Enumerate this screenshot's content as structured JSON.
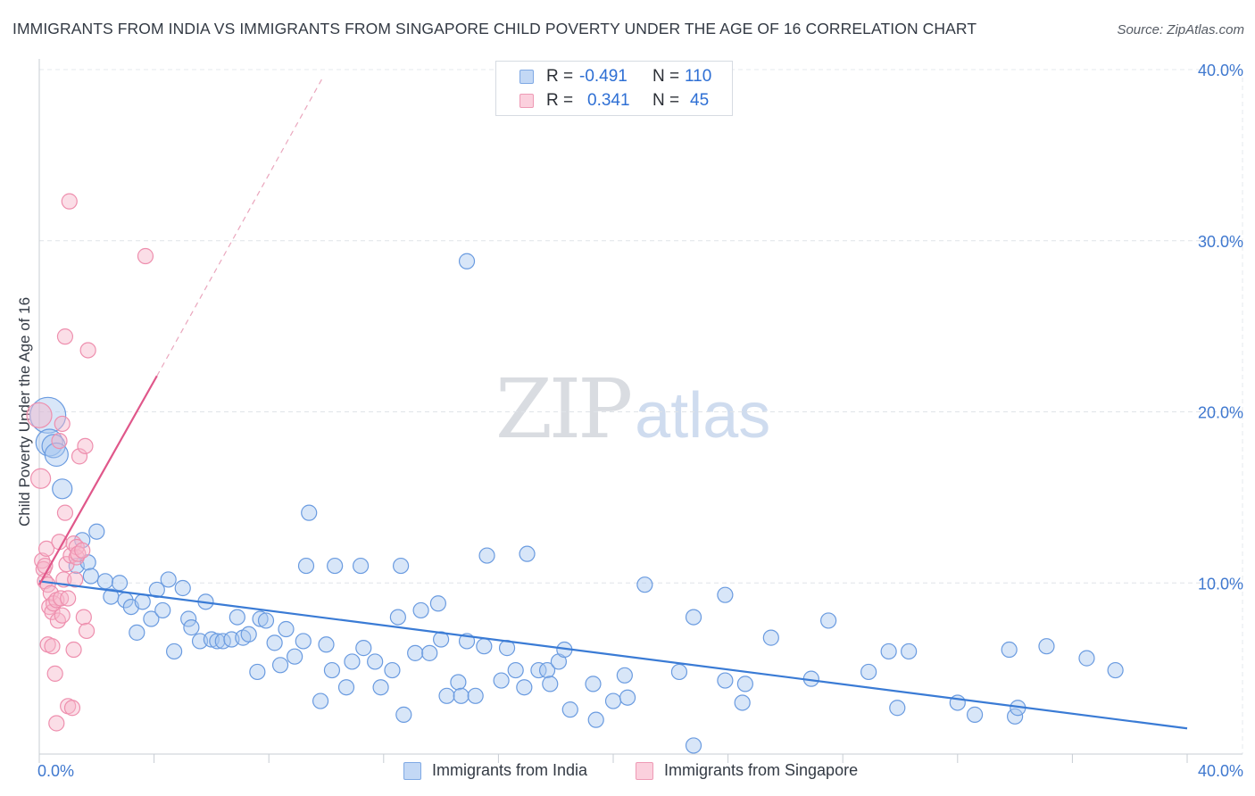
{
  "title": "IMMIGRANTS FROM INDIA VS IMMIGRANTS FROM SINGAPORE CHILD POVERTY UNDER THE AGE OF 16 CORRELATION CHART",
  "source": "Source: ZipAtlas.com",
  "watermark": {
    "zip": "ZIP",
    "atlas": "atlas"
  },
  "legend": {
    "rows": [
      {
        "r_label": "R =",
        "r_value": "-0.491",
        "n_label": "N =",
        "n_value": "110",
        "color": "#9fc2ef"
      },
      {
        "r_label": "R =",
        "r_value": "0.341",
        "n_label": "N =",
        "n_value": "45",
        "color": "#f5b0c5"
      }
    ]
  },
  "chart_data": {
    "type": "scatter",
    "title": "IMMIGRANTS FROM INDIA VS IMMIGRANTS FROM SINGAPORE CHILD POVERTY UNDER THE AGE OF 16 CORRELATION CHART",
    "xlabel": "",
    "ylabel": "Child Poverty Under the Age of 16",
    "xlim": [
      0,
      40
    ],
    "ylim": [
      0,
      40
    ],
    "x_tick_labels": [
      "0.0%",
      "40.0%"
    ],
    "y_tick_labels": [
      "10.0%",
      "20.0%",
      "30.0%",
      "40.0%"
    ],
    "y_ticks": [
      10,
      20,
      30,
      40
    ],
    "grid": true,
    "legend_position": "bottom-center",
    "series": [
      {
        "name": "Immigrants from India",
        "color": "#3a7bd5",
        "fill": "#a9c8f0",
        "trend": {
          "x": [
            0,
            40
          ],
          "y": [
            10.1,
            1.5
          ]
        },
        "points": [
          [
            0.3,
            19.8
          ],
          [
            0.35,
            18.2
          ],
          [
            0.5,
            18.0
          ],
          [
            0.6,
            17.5
          ],
          [
            0.8,
            15.5
          ],
          [
            1.5,
            12.5
          ],
          [
            1.3,
            11.0
          ],
          [
            1.7,
            11.2
          ],
          [
            1.8,
            10.4
          ],
          [
            2.0,
            13.0
          ],
          [
            2.3,
            10.1
          ],
          [
            2.5,
            9.2
          ],
          [
            2.8,
            10.0
          ],
          [
            3.0,
            9.0
          ],
          [
            3.2,
            8.6
          ],
          [
            3.4,
            7.1
          ],
          [
            3.6,
            8.9
          ],
          [
            3.9,
            7.9
          ],
          [
            4.1,
            9.6
          ],
          [
            4.3,
            8.4
          ],
          [
            4.5,
            10.2
          ],
          [
            4.7,
            6.0
          ],
          [
            5.0,
            9.7
          ],
          [
            5.2,
            7.9
          ],
          [
            5.3,
            7.4
          ],
          [
            5.6,
            6.6
          ],
          [
            5.8,
            8.9
          ],
          [
            6.0,
            6.7
          ],
          [
            6.2,
            6.6
          ],
          [
            6.4,
            6.6
          ],
          [
            6.7,
            6.7
          ],
          [
            6.9,
            8.0
          ],
          [
            7.1,
            6.8
          ],
          [
            7.3,
            7.0
          ],
          [
            7.6,
            4.8
          ],
          [
            7.7,
            7.9
          ],
          [
            7.9,
            7.8
          ],
          [
            8.2,
            6.5
          ],
          [
            8.4,
            5.2
          ],
          [
            8.6,
            7.3
          ],
          [
            8.9,
            5.7
          ],
          [
            9.2,
            6.6
          ],
          [
            9.4,
            14.1
          ],
          [
            9.3,
            11.0
          ],
          [
            9.8,
            3.1
          ],
          [
            10.0,
            6.4
          ],
          [
            10.3,
            11.0
          ],
          [
            10.2,
            4.9
          ],
          [
            10.7,
            3.9
          ],
          [
            10.9,
            5.4
          ],
          [
            11.2,
            11.0
          ],
          [
            11.3,
            6.2
          ],
          [
            11.7,
            5.4
          ],
          [
            11.9,
            3.9
          ],
          [
            12.3,
            4.9
          ],
          [
            12.6,
            11.0
          ],
          [
            12.5,
            8.0
          ],
          [
            12.7,
            2.3
          ],
          [
            13.1,
            5.9
          ],
          [
            13.6,
            5.9
          ],
          [
            13.3,
            8.4
          ],
          [
            13.9,
            8.8
          ],
          [
            14.0,
            6.7
          ],
          [
            14.2,
            3.4
          ],
          [
            14.6,
            4.2
          ],
          [
            14.7,
            3.4
          ],
          [
            14.9,
            6.6
          ],
          [
            15.2,
            3.4
          ],
          [
            14.9,
            28.8
          ],
          [
            15.5,
            6.3
          ],
          [
            15.6,
            11.6
          ],
          [
            16.1,
            4.3
          ],
          [
            16.3,
            6.2
          ],
          [
            16.6,
            4.9
          ],
          [
            16.9,
            3.9
          ],
          [
            17.0,
            11.7
          ],
          [
            17.4,
            4.9
          ],
          [
            17.7,
            4.9
          ],
          [
            17.8,
            4.1
          ],
          [
            18.1,
            5.4
          ],
          [
            18.3,
            6.1
          ],
          [
            18.5,
            2.6
          ],
          [
            19.3,
            4.1
          ],
          [
            19.4,
            2.0
          ],
          [
            20.0,
            3.1
          ],
          [
            20.4,
            4.6
          ],
          [
            20.5,
            3.3
          ],
          [
            21.1,
            9.9
          ],
          [
            22.3,
            4.8
          ],
          [
            22.8,
            0.5
          ],
          [
            22.8,
            8.0
          ],
          [
            23.9,
            9.3
          ],
          [
            23.9,
            4.3
          ],
          [
            24.5,
            3.0
          ],
          [
            24.6,
            4.1
          ],
          [
            25.5,
            6.8
          ],
          [
            26.9,
            4.4
          ],
          [
            27.5,
            7.8
          ],
          [
            28.9,
            4.8
          ],
          [
            29.6,
            6.0
          ],
          [
            29.9,
            2.7
          ],
          [
            30.3,
            6.0
          ],
          [
            32.6,
            2.3
          ],
          [
            33.8,
            6.1
          ],
          [
            34.0,
            2.2
          ],
          [
            34.1,
            2.7
          ],
          [
            35.1,
            6.3
          ],
          [
            36.5,
            5.6
          ],
          [
            37.5,
            4.9
          ],
          [
            32.0,
            3.0
          ]
        ]
      },
      {
        "name": "Immigrants from Singapore",
        "color": "#e0578a",
        "fill": "#f7b6ca",
        "trend": {
          "x": [
            0,
            4.1
          ],
          "y": [
            9.9,
            22.1
          ],
          "dashed_extension": {
            "x": [
              4.1,
              9.9
            ],
            "y": [
              22.1,
              39.6
            ]
          }
        },
        "points": [
          [
            0.0,
            19.8
          ],
          [
            0.05,
            16.1
          ],
          [
            0.1,
            11.3
          ],
          [
            0.15,
            10.8
          ],
          [
            0.2,
            11.0
          ],
          [
            0.2,
            10.1
          ],
          [
            0.25,
            12.0
          ],
          [
            0.3,
            9.9
          ],
          [
            0.3,
            6.4
          ],
          [
            0.35,
            8.6
          ],
          [
            0.4,
            9.4
          ],
          [
            0.45,
            6.3
          ],
          [
            0.45,
            8.3
          ],
          [
            0.5,
            8.8
          ],
          [
            0.55,
            4.7
          ],
          [
            0.6,
            1.8
          ],
          [
            0.6,
            9.0
          ],
          [
            0.65,
            7.8
          ],
          [
            0.7,
            12.4
          ],
          [
            0.7,
            18.3
          ],
          [
            0.75,
            9.1
          ],
          [
            0.8,
            8.1
          ],
          [
            0.8,
            19.3
          ],
          [
            0.85,
            10.2
          ],
          [
            0.9,
            24.4
          ],
          [
            0.9,
            14.1
          ],
          [
            0.95,
            11.1
          ],
          [
            1.0,
            2.8
          ],
          [
            1.0,
            9.1
          ],
          [
            1.05,
            32.3
          ],
          [
            1.1,
            11.6
          ],
          [
            1.15,
            2.7
          ],
          [
            1.2,
            12.3
          ],
          [
            1.2,
            6.1
          ],
          [
            1.25,
            10.2
          ],
          [
            1.3,
            11.5
          ],
          [
            1.3,
            12.1
          ],
          [
            1.35,
            11.7
          ],
          [
            1.4,
            17.4
          ],
          [
            1.5,
            11.9
          ],
          [
            1.55,
            8.0
          ],
          [
            1.6,
            18.0
          ],
          [
            1.65,
            7.2
          ],
          [
            1.7,
            23.6
          ],
          [
            3.7,
            29.1
          ]
        ]
      }
    ]
  },
  "bottom_legend": [
    {
      "label": "Immigrants from India",
      "color": "#a9c8f0",
      "border": "#6d9de0"
    },
    {
      "label": "Immigrants from Singapore",
      "color": "#f7c2d2",
      "border": "#e98aa8"
    }
  ]
}
